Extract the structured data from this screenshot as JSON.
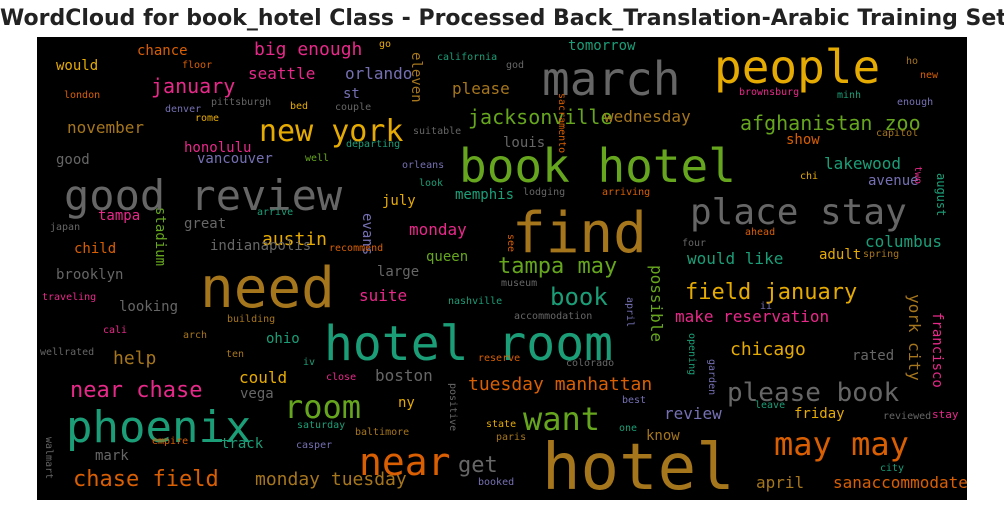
{
  "title": "WordCloud for book_hotel Class - Processed Back_Translation-Arabic Training Set",
  "chart_data": {
    "type": "wordcloud",
    "background": "#000000",
    "palette": "Dark2",
    "words": [
      {
        "text": "hotel",
        "color": "#a6761d"
      },
      {
        "text": "hotel room",
        "color": "#1b9e77"
      },
      {
        "text": "need",
        "color": "#a6761d"
      },
      {
        "text": "book hotel",
        "color": "#66a61e"
      },
      {
        "text": "find",
        "color": "#a6761d"
      },
      {
        "text": "march",
        "color": "#666666"
      },
      {
        "text": "people",
        "color": "#e6ab02"
      },
      {
        "text": "good review",
        "color": "#666666"
      },
      {
        "text": "phoenix",
        "color": "#1b9e77"
      },
      {
        "text": "place stay",
        "color": "#666666"
      },
      {
        "text": "near",
        "color": "#d95f02"
      },
      {
        "text": "may may",
        "color": "#d95f02"
      },
      {
        "text": "want",
        "color": "#66a61e"
      },
      {
        "text": "room",
        "color": "#66a61e"
      },
      {
        "text": "new york",
        "color": "#e6ab02"
      },
      {
        "text": "please book",
        "color": "#666666"
      },
      {
        "text": "near chase",
        "color": "#e7298a"
      },
      {
        "text": "chase field",
        "color": "#d95f02"
      },
      {
        "text": "field january",
        "color": "#e6ab02"
      },
      {
        "text": "tampa may",
        "color": "#66a61e"
      },
      {
        "text": "book",
        "color": "#1b9e77"
      },
      {
        "text": "afghanistan zoo",
        "color": "#66a61e"
      },
      {
        "text": "jacksonville",
        "color": "#66a61e"
      },
      {
        "text": "tuesday manhattan",
        "color": "#d95f02"
      },
      {
        "text": "get",
        "color": "#666666"
      },
      {
        "text": "monday tuesday",
        "color": "#a6761d"
      },
      {
        "text": "big enough",
        "color": "#e7298a"
      },
      {
        "text": "january",
        "color": "#e7298a"
      },
      {
        "text": "chicago",
        "color": "#e6ab02"
      },
      {
        "text": "make reservation",
        "color": "#e7298a"
      },
      {
        "text": "would like",
        "color": "#1b9e77"
      },
      {
        "text": "columbus",
        "color": "#1b9e77"
      },
      {
        "text": "lakewood",
        "color": "#1b9e77"
      },
      {
        "text": "help",
        "color": "#a6761d"
      },
      {
        "text": "austin",
        "color": "#e6ab02"
      },
      {
        "text": "monday",
        "color": "#e7298a"
      },
      {
        "text": "please",
        "color": "#a6761d"
      },
      {
        "text": "wednesday",
        "color": "#a6761d"
      },
      {
        "text": "november",
        "color": "#a6761d"
      },
      {
        "text": "orlando",
        "color": "#7570b3"
      },
      {
        "text": "seattle",
        "color": "#e7298a"
      },
      {
        "text": "could",
        "color": "#e6ab02"
      },
      {
        "text": "boston",
        "color": "#666666"
      },
      {
        "text": "review",
        "color": "#7570b3"
      },
      {
        "text": "april",
        "color": "#a6761d"
      },
      {
        "text": "sanaccommodate",
        "color": "#d95f02"
      },
      {
        "text": "friday",
        "color": "#e6ab02"
      },
      {
        "text": "know",
        "color": "#a6761d"
      },
      {
        "text": "vancouver",
        "color": "#7570b3"
      },
      {
        "text": "honolulu",
        "color": "#e7298a"
      },
      {
        "text": "memphis",
        "color": "#1b9e77"
      },
      {
        "text": "suite",
        "color": "#e7298a"
      },
      {
        "text": "queen",
        "color": "#66a61e"
      },
      {
        "text": "july",
        "color": "#e6ab02"
      },
      {
        "text": "louis",
        "color": "#666666"
      },
      {
        "text": "chance",
        "color": "#d95f02"
      },
      {
        "text": "would",
        "color": "#e6ab02"
      },
      {
        "text": "good",
        "color": "#666666"
      },
      {
        "text": "tomorrow",
        "color": "#1b9e77"
      },
      {
        "text": "mark",
        "color": "#666666"
      },
      {
        "text": "track",
        "color": "#1b9e77"
      },
      {
        "text": "brooklyn",
        "color": "#666666"
      },
      {
        "text": "child",
        "color": "#d95f02"
      },
      {
        "text": "tampa",
        "color": "#e7298a"
      },
      {
        "text": "looking",
        "color": "#666666"
      },
      {
        "text": "great",
        "color": "#666666"
      },
      {
        "text": "indianapolis",
        "color": "#666666"
      },
      {
        "text": "stadium",
        "color": "#66a61e"
      },
      {
        "text": "evans",
        "color": "#7570b3"
      },
      {
        "text": "large",
        "color": "#666666"
      },
      {
        "text": "ohio",
        "color": "#1b9e77"
      },
      {
        "text": "vega",
        "color": "#666666"
      },
      {
        "text": "ny",
        "color": "#e6ab02"
      },
      {
        "text": "st",
        "color": "#7570b3"
      },
      {
        "text": "eleven",
        "color": "#a6761d"
      },
      {
        "text": "possible",
        "color": "#66a61e"
      },
      {
        "text": "york city",
        "color": "#a6761d"
      },
      {
        "text": "francisco",
        "color": "#e7298a"
      },
      {
        "text": "august",
        "color": "#1b9e77"
      },
      {
        "text": "show",
        "color": "#d95f02"
      },
      {
        "text": "avenue",
        "color": "#7570b3"
      },
      {
        "text": "adult",
        "color": "#e6ab02"
      },
      {
        "text": "rated",
        "color": "#666666"
      },
      {
        "text": "stay",
        "color": "#e7298a"
      },
      {
        "text": "reviewed",
        "color": "#666666"
      },
      {
        "text": "city",
        "color": "#1b9e77"
      },
      {
        "text": "leave",
        "color": "#1b9e77"
      },
      {
        "text": "best",
        "color": "#7570b3"
      },
      {
        "text": "one",
        "color": "#1b9e77"
      },
      {
        "text": "state",
        "color": "#e6ab02"
      },
      {
        "text": "paris",
        "color": "#a6761d"
      },
      {
        "text": "booked",
        "color": "#7570b3"
      },
      {
        "text": "positive",
        "color": "#666666"
      },
      {
        "text": "saturday",
        "color": "#1b9e77"
      },
      {
        "text": "casper",
        "color": "#7570b3"
      },
      {
        "text": "baltimore",
        "color": "#a6761d"
      },
      {
        "text": "empire",
        "color": "#d95f02"
      },
      {
        "text": "walmart",
        "color": "#666666"
      },
      {
        "text": "wellrated",
        "color": "#666666"
      },
      {
        "text": "ten",
        "color": "#a6761d"
      },
      {
        "text": "iv",
        "color": "#1b9e77"
      },
      {
        "text": "close",
        "color": "#e7298a"
      },
      {
        "text": "reserve",
        "color": "#d95f02"
      },
      {
        "text": "colorado",
        "color": "#666666"
      },
      {
        "text": "accommodation",
        "color": "#666666"
      },
      {
        "text": "building",
        "color": "#a6761d"
      },
      {
        "text": "cali",
        "color": "#e7298a"
      },
      {
        "text": "arch",
        "color": "#a6761d"
      },
      {
        "text": "traveling",
        "color": "#e7298a"
      },
      {
        "text": "japan",
        "color": "#666666"
      },
      {
        "text": "arrive",
        "color": "#1b9e77"
      },
      {
        "text": "recommend",
        "color": "#d95f02"
      },
      {
        "text": "nashville",
        "color": "#1b9e77"
      },
      {
        "text": "museum",
        "color": "#666666"
      },
      {
        "text": "see",
        "color": "#d95f02"
      },
      {
        "text": "spring",
        "color": "#a6761d"
      },
      {
        "text": "four",
        "color": "#666666"
      },
      {
        "text": "ahead",
        "color": "#d95f02"
      },
      {
        "text": "ii",
        "color": "#7570b3"
      },
      {
        "text": "opening",
        "color": "#1b9e77"
      },
      {
        "text": "garden",
        "color": "#7570b3"
      },
      {
        "text": "april",
        "color": "#7570b3"
      },
      {
        "text": "look",
        "color": "#1b9e77"
      },
      {
        "text": "orleans",
        "color": "#7570b3"
      },
      {
        "text": "lodging",
        "color": "#666666"
      },
      {
        "text": "arriving",
        "color": "#d95f02"
      },
      {
        "text": "chi",
        "color": "#e6ab02"
      },
      {
        "text": "two",
        "color": "#e7298a"
      },
      {
        "text": "well",
        "color": "#66a61e"
      },
      {
        "text": "departing",
        "color": "#1b9e77"
      },
      {
        "text": "suitable",
        "color": "#666666"
      },
      {
        "text": "capitol",
        "color": "#a6761d"
      },
      {
        "text": "enough",
        "color": "#7570b3"
      },
      {
        "text": "minh",
        "color": "#1b9e77"
      },
      {
        "text": "brownsburg",
        "color": "#e7298a"
      },
      {
        "text": "sacramento",
        "color": "#d95f02"
      },
      {
        "text": "california",
        "color": "#1b9e77"
      },
      {
        "text": "god",
        "color": "#666666"
      },
      {
        "text": "go",
        "color": "#e6ab02"
      },
      {
        "text": "floor",
        "color": "#d95f02"
      },
      {
        "text": "london",
        "color": "#d95f02"
      },
      {
        "text": "denver",
        "color": "#7570b3"
      },
      {
        "text": "pittsburgh",
        "color": "#666666"
      },
      {
        "text": "rome",
        "color": "#e6ab02"
      },
      {
        "text": "bed",
        "color": "#e6ab02"
      },
      {
        "text": "couple",
        "color": "#666666"
      },
      {
        "text": "ho",
        "color": "#a6761d"
      },
      {
        "text": "new",
        "color": "#d95f02"
      }
    ]
  }
}
